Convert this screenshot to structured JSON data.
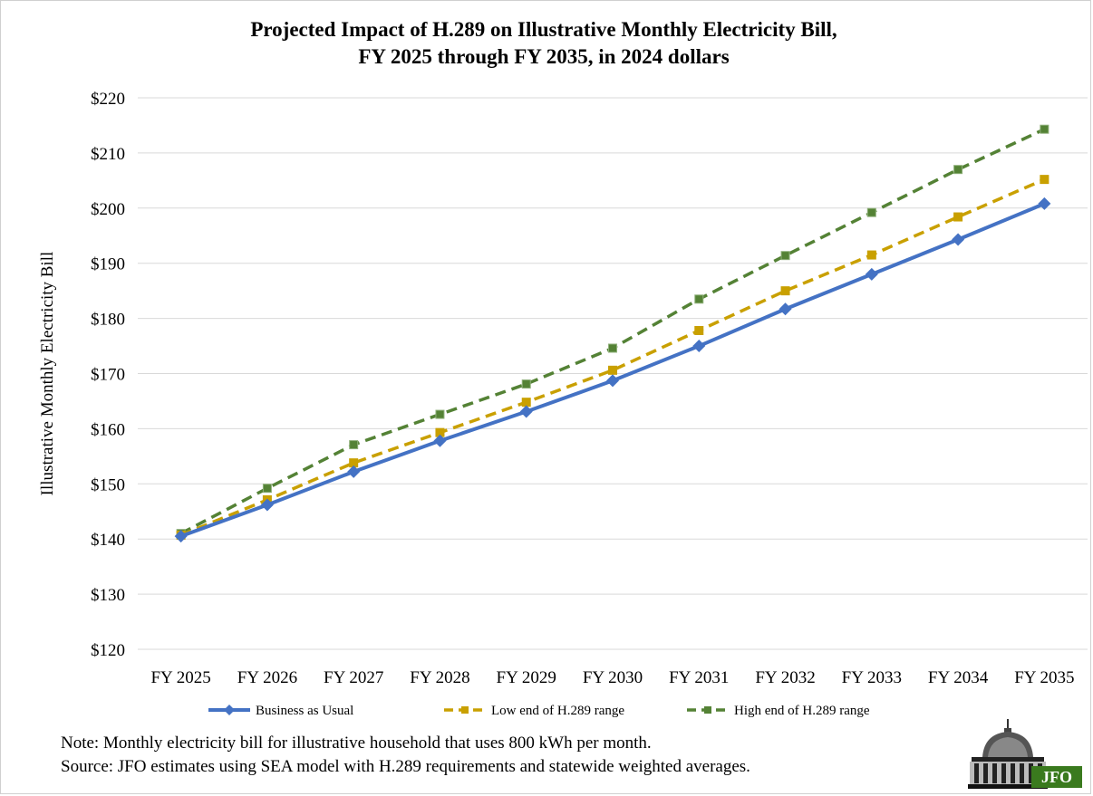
{
  "chart_data": {
    "type": "line",
    "title_line1": "Projected Impact of H.289 on Illustrative Monthly Electricity Bill,",
    "title_line2": "FY 2025 through FY 2035, in 2024 dollars",
    "ylabel": "Illustrative Monthly Electricity Bill",
    "xlabel": "",
    "ylim": [
      120,
      220
    ],
    "yticks": [
      "$120",
      "$130",
      "$140",
      "$150",
      "$160",
      "$170",
      "$180",
      "$190",
      "$200",
      "$210",
      "$220"
    ],
    "categories": [
      "FY 2025",
      "FY 2026",
      "FY 2027",
      "FY 2028",
      "FY 2029",
      "FY 2030",
      "FY 2031",
      "FY 2032",
      "FY 2033",
      "FY 2034",
      "FY 2035"
    ],
    "grid": true,
    "legend_position": "bottom",
    "series": [
      {
        "name": "Business as Usual",
        "color": "#4472c4",
        "style": "solid",
        "marker": "diamond",
        "values": [
          140.5,
          146.2,
          152.2,
          157.8,
          163.1,
          168.7,
          175.0,
          181.7,
          188.0,
          194.3,
          200.8
        ]
      },
      {
        "name": "Low end of H.289 range",
        "color": "#c9a000",
        "style": "dashed",
        "marker": "square",
        "values": [
          140.7,
          147.1,
          153.8,
          159.3,
          164.8,
          170.6,
          177.8,
          185.0,
          191.5,
          198.4,
          205.2
        ]
      },
      {
        "name": "High end of H.289 range",
        "color": "#548235",
        "style": "dashed",
        "marker": "square",
        "values": [
          141.0,
          149.2,
          157.1,
          162.6,
          168.1,
          174.6,
          183.5,
          191.4,
          199.2,
          207.0,
          214.3
        ]
      }
    ]
  },
  "note": {
    "line1": "Note: Monthly electricity bill for illustrative household that uses 800 kWh per month.",
    "line2": "Source: JFO estimates using SEA model with H.289 requirements and statewide weighted averages."
  },
  "logo": {
    "text": "JFO"
  }
}
